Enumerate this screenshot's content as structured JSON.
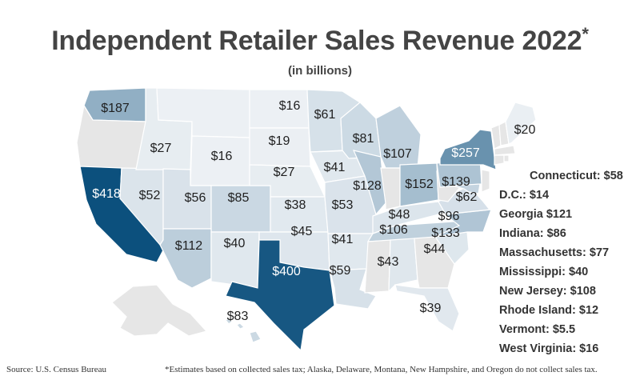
{
  "title": "Independent Retailer Sales Revenue 2022",
  "title_mark": "*",
  "subtitle": "(in billions)",
  "colors": {
    "no_data": "#e6e6e6",
    "scale_low": "#f4f6f8",
    "scale_mid": "#c3d3df",
    "scale_high": "#0b4f7c",
    "border": "#ffffff"
  },
  "map_labels": [
    {
      "state": "Washington",
      "text": "$187"
    },
    {
      "state": "Montana",
      "text": "$16"
    },
    {
      "state": "North Dakota",
      "text": "$16"
    },
    {
      "state": "Minnesota",
      "text": "$61"
    },
    {
      "state": "Maine",
      "text": "$20"
    },
    {
      "state": "Idaho",
      "text": "$27"
    },
    {
      "state": "Wyoming",
      "text": "$16"
    },
    {
      "state": "South Dakota",
      "text": "$19"
    },
    {
      "state": "Wisconsin",
      "text": "$81"
    },
    {
      "state": "Michigan",
      "text": "$107"
    },
    {
      "state": "New York",
      "text": "$257"
    },
    {
      "state": "Iowa",
      "text": "$41"
    },
    {
      "state": "Nebraska",
      "text": "$27"
    },
    {
      "state": "California",
      "text": "$418"
    },
    {
      "state": "Nevada",
      "text": "$52"
    },
    {
      "state": "Utah",
      "text": "$56"
    },
    {
      "state": "Colorado",
      "text": "$85"
    },
    {
      "state": "Illinois",
      "text": "$128"
    },
    {
      "state": "Ohio",
      "text": "$152"
    },
    {
      "state": "Pennsylvania",
      "text": "$139"
    },
    {
      "state": "Kansas",
      "text": "$38"
    },
    {
      "state": "Missouri",
      "text": "$53"
    },
    {
      "state": "Virginia",
      "text": "$62"
    },
    {
      "state": "Kentucky",
      "text": "$48"
    },
    {
      "state": "Maryland",
      "text": "$96"
    },
    {
      "state": "Tennessee",
      "text": "$106"
    },
    {
      "state": "North Carolina",
      "text": "$133"
    },
    {
      "state": "Oklahoma",
      "text": "$45"
    },
    {
      "state": "Arizona",
      "text": "$112"
    },
    {
      "state": "New Mexico",
      "text": "$40"
    },
    {
      "state": "Arkansas",
      "text": "$41"
    },
    {
      "state": "South Carolina",
      "text": "$44"
    },
    {
      "state": "Texas",
      "text": "$400"
    },
    {
      "state": "Louisiana",
      "text": "$59"
    },
    {
      "state": "Alabama",
      "text": "$43"
    },
    {
      "state": "Florida",
      "text": "$39"
    },
    {
      "state": "Hawaii",
      "text": "$83"
    }
  ],
  "side_list": [
    "Connecticut: $58",
    "D.C.: $14",
    "Georgia $121",
    "Indiana: $86",
    "Massachusetts: $77",
    "Mississippi: $40",
    "New Jersey: $108",
    "Rhode Island: $12",
    "Vermont: $5.5",
    "West Virginia: $16"
  ],
  "source": "Source: U.S. Census Bureau",
  "footnote": "*Estimates based on collected sales tax; Alaska, Delaware, Montana, New Hampshire, and Oregon do not collect sales tax."
}
